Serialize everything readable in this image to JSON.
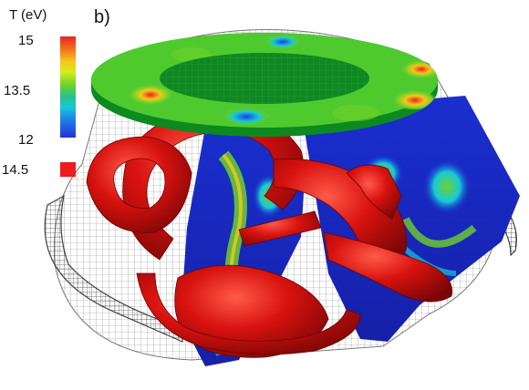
{
  "figure": {
    "panel_label": "b)",
    "colorbar": {
      "title": "T (eV)",
      "tick_max": "15",
      "tick_mid": "13.5",
      "tick_min": "12",
      "range": [
        12,
        15
      ],
      "colors": [
        "#e8231f",
        "#f5c81c",
        "#6fd12a",
        "#17c9d9",
        "#2132d8"
      ]
    },
    "isosurface": {
      "value_label": "14.5",
      "value": 14.5,
      "color": "#ee1c1c"
    }
  }
}
